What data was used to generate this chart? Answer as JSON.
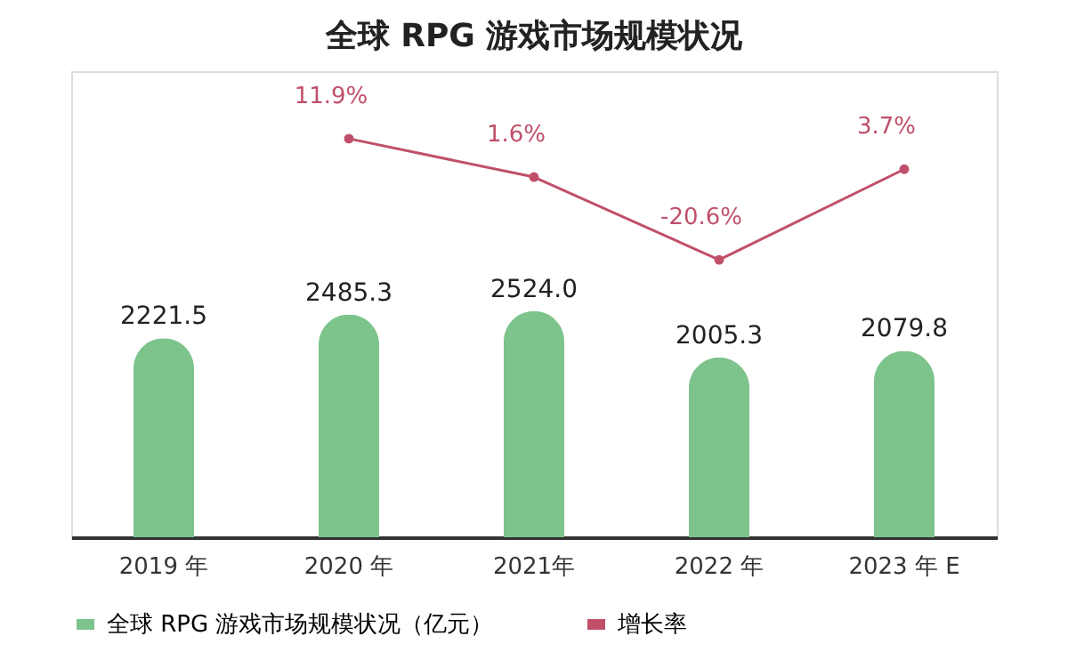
{
  "chart_data": {
    "type": "bar",
    "title": "全球 RPG 游戏市场规模状况",
    "categories": [
      "2019 年",
      "2020 年",
      "2021年",
      "2022 年",
      "2023 年 E"
    ],
    "series": [
      {
        "name": "全球 RPG 游戏市场规模状况（亿元）",
        "color": "#7dc38c",
        "values": [
          2221.5,
          2485.3,
          2524.0,
          2005.3,
          2079.8
        ],
        "value_labels": [
          "2221.5",
          "2485.3",
          "2524.0",
          "2005.3",
          "2079.8"
        ]
      },
      {
        "name": "增长率",
        "type": "line",
        "axis": "y2",
        "color": "#c0506a",
        "values": [
          null,
          11.9,
          1.6,
          -20.6,
          3.7
        ],
        "value_labels": [
          null,
          "11.9%",
          "1.6%",
          "-20.6%",
          "3.7%"
        ]
      }
    ],
    "ylim": [
      0,
      5200
    ],
    "y2lim": [
      -95,
      30
    ],
    "data_labels": true,
    "legend": "bottom",
    "marker": "circle",
    "grid": false
  }
}
